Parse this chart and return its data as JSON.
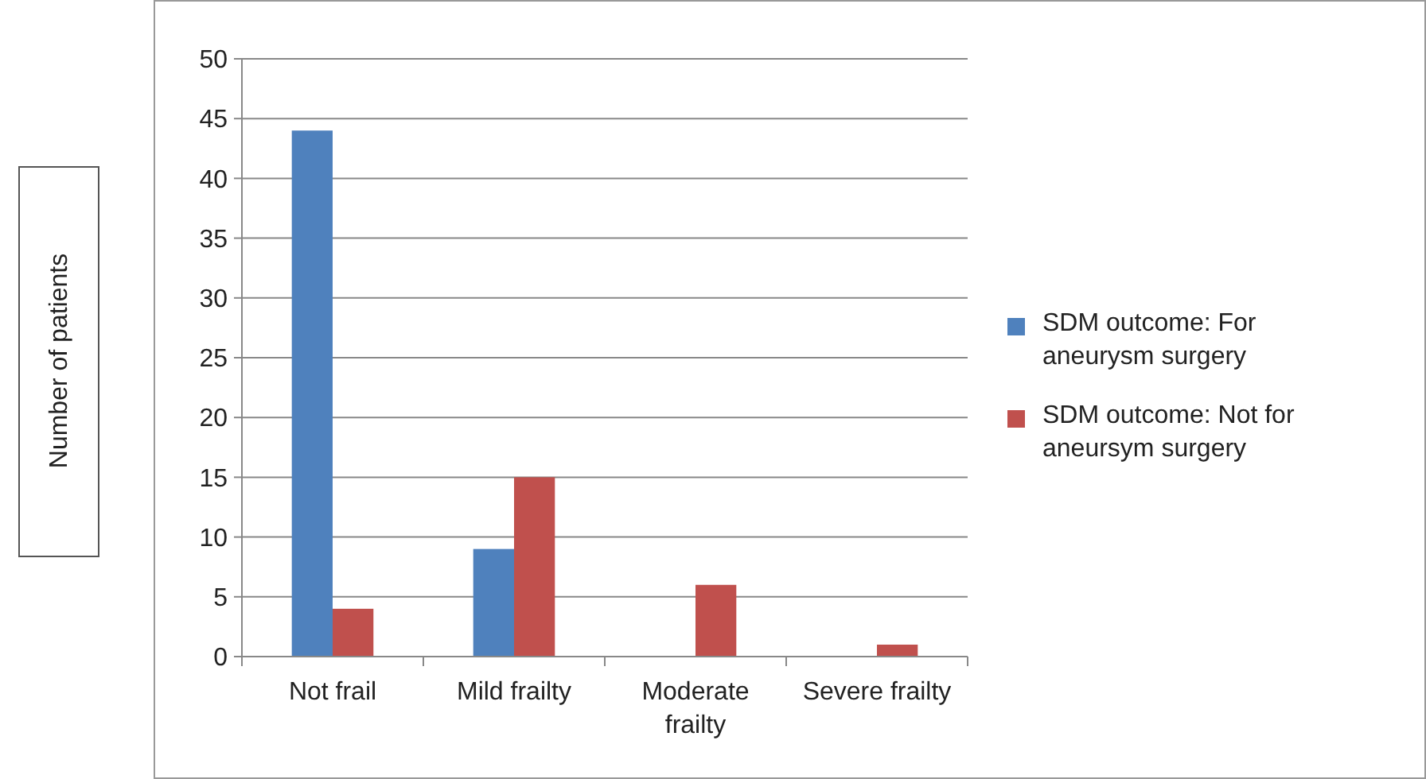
{
  "chart_data": {
    "type": "bar",
    "ylabel": "Number of patients",
    "categories": [
      "Not frail",
      "Mild frailty",
      "Moderate frailty",
      "Severe frailty"
    ],
    "series": [
      {
        "name": "SDM outcome: For aneurysm surgery",
        "color": "#4f81bd",
        "values": [
          44,
          9,
          0,
          0
        ]
      },
      {
        "name": "SDM outcome: Not for aneursym surgery",
        "color": "#c0504d",
        "values": [
          4,
          15,
          6,
          1
        ]
      }
    ],
    "ylim": [
      0,
      50
    ],
    "yticks": [
      0,
      5,
      10,
      15,
      20,
      25,
      30,
      35,
      40,
      45,
      50
    ],
    "grid": "y",
    "legend": "right"
  }
}
